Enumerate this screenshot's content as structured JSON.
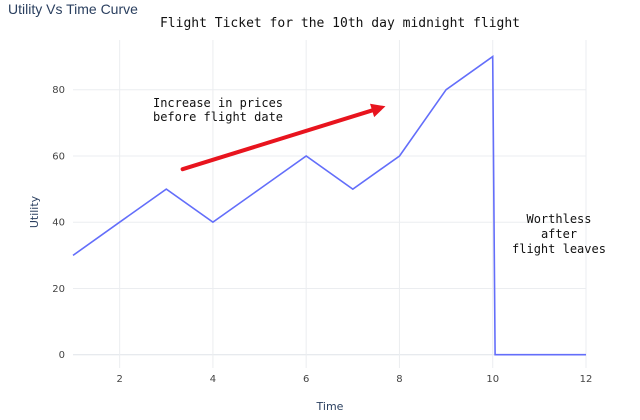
{
  "chart_data": {
    "type": "line",
    "title": "Utility Vs Time Curve",
    "subtitle": "Flight Ticket for the 10th day midnight flight",
    "xlabel": "Time",
    "ylabel": "Utility",
    "x": [
      1,
      2,
      3,
      4,
      5,
      6,
      7,
      8,
      9,
      10,
      10.05,
      12
    ],
    "y": [
      30,
      40,
      50,
      40,
      50,
      60,
      50,
      60,
      80,
      90,
      0,
      0
    ],
    "xlim": [
      1,
      12
    ],
    "ylim": [
      -4,
      95
    ],
    "xticks": [
      2,
      4,
      6,
      8,
      10,
      12
    ],
    "yticks": [
      0,
      20,
      40,
      60,
      80
    ],
    "grid": true,
    "line_color": "#636efa",
    "annotations": [
      {
        "lines": [
          "Increase in prices",
          "before flight date"
        ]
      },
      {
        "lines": [
          "Worthless",
          "after",
          "flight leaves"
        ]
      }
    ],
    "arrow": {
      "color": "#e8141e",
      "from": [
        3.35,
        56
      ],
      "to": [
        7.7,
        75
      ]
    }
  }
}
